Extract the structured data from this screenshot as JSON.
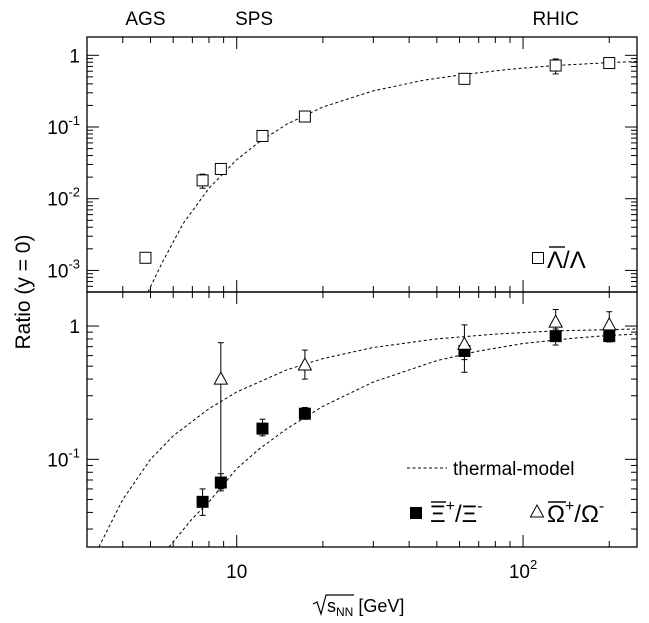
{
  "chart_data": {
    "type": "scatter",
    "xlabel_main": "s",
    "xlabel_sub": "NN",
    "xlabel_unit": " [GeV]",
    "ylabel": "Ratio (y = 0)",
    "x_scale": "log",
    "y_scale": "log",
    "xlim": [
      3,
      250
    ],
    "x_ticks": [
      {
        "v": 10,
        "base": "10",
        "exp": ""
      },
      {
        "v": 100,
        "base": "10",
        "exp": "2"
      }
    ],
    "top_labels": [
      {
        "text": "AGS",
        "x": 4.8
      },
      {
        "text": "SPS",
        "x": 11.5
      },
      {
        "text": "RHIC",
        "x": 130
      }
    ],
    "panels": [
      {
        "id": "top",
        "ylim": [
          0.0005,
          1.8
        ],
        "y_ticks": [
          {
            "v": 0.001,
            "base": "10",
            "exp": "-3"
          },
          {
            "v": 0.01,
            "base": "10",
            "exp": "-2"
          },
          {
            "v": 0.1,
            "base": "10",
            "exp": "-1"
          },
          {
            "v": 1,
            "base": "1",
            "exp": ""
          }
        ],
        "legend": {
          "position": "bottom-right",
          "entries": [
            {
              "marker": "open-square",
              "num": "Λ",
              "den": "Λ",
              "num_bar": true
            }
          ]
        },
        "series": [
          {
            "marker": "open-square",
            "points": [
              {
                "x": 4.8,
                "y": 0.0015,
                "lo": 0.0013,
                "hi": 0.0017
              },
              {
                "x": 7.6,
                "y": 0.018,
                "lo": 0.014,
                "hi": 0.022
              },
              {
                "x": 8.8,
                "y": 0.026,
                "lo": 0.022,
                "hi": 0.03
              },
              {
                "x": 12.3,
                "y": 0.075,
                "lo": 0.068,
                "hi": 0.082
              },
              {
                "x": 17.3,
                "y": 0.14,
                "lo": 0.12,
                "hi": 0.16
              },
              {
                "x": 62.4,
                "y": 0.47,
                "lo": 0.4,
                "hi": 0.54
              },
              {
                "x": 130,
                "y": 0.72,
                "lo": 0.55,
                "hi": 0.89
              },
              {
                "x": 200,
                "y": 0.78,
                "lo": 0.7,
                "hi": 0.86
              }
            ]
          }
        ],
        "curves": [
          {
            "style": "dashed",
            "points": [
              [
                4.9,
                0.0005
              ],
              [
                5.5,
                0.0013
              ],
              [
                6.5,
                0.0045
              ],
              [
                8,
                0.014
              ],
              [
                10,
                0.035
              ],
              [
                12,
                0.062
              ],
              [
                15,
                0.11
              ],
              [
                20,
                0.19
              ],
              [
                30,
                0.32
              ],
              [
                45,
                0.45
              ],
              [
                62,
                0.54
              ],
              [
                90,
                0.64
              ],
              [
                130,
                0.72
              ],
              [
                200,
                0.79
              ],
              [
                250,
                0.82
              ]
            ]
          }
        ]
      },
      {
        "id": "bottom",
        "ylim": [
          0.022,
          1.8
        ],
        "y_ticks": [
          {
            "v": 0.1,
            "base": "10",
            "exp": "-1"
          },
          {
            "v": 1,
            "base": "1",
            "exp": ""
          }
        ],
        "legend": {
          "position": "bottom-right",
          "curve_label": "thermal-model",
          "entries": [
            {
              "marker": "filled-square",
              "num": "Ξ",
              "num_sup": "+",
              "den": "Ξ",
              "den_sup": "-",
              "num_bar": true
            },
            {
              "marker": "open-triangle",
              "num": "Ω",
              "num_sup": "+",
              "den": "Ω",
              "den_sup": "-",
              "num_bar": true
            }
          ]
        },
        "series": [
          {
            "marker": "filled-square",
            "points": [
              {
                "x": 7.6,
                "y": 0.048,
                "lo": 0.038,
                "hi": 0.06
              },
              {
                "x": 8.8,
                "y": 0.067,
                "lo": 0.058,
                "hi": 0.078
              },
              {
                "x": 12.3,
                "y": 0.17,
                "lo": 0.15,
                "hi": 0.2
              },
              {
                "x": 17.3,
                "y": 0.22,
                "lo": 0.2,
                "hi": 0.245
              },
              {
                "x": 62.4,
                "y": 0.65,
                "lo": 0.56,
                "hi": 0.72
              },
              {
                "x": 130,
                "y": 0.84,
                "lo": 0.72,
                "hi": 0.95
              },
              {
                "x": 200,
                "y": 0.84,
                "lo": 0.76,
                "hi": 0.92
              }
            ]
          },
          {
            "marker": "open-triangle",
            "points": [
              {
                "x": 8.8,
                "y": 0.4,
                "lo": 0.06,
                "hi": 0.75
              },
              {
                "x": 17.3,
                "y": 0.51,
                "lo": 0.4,
                "hi": 0.66
              },
              {
                "x": 62.4,
                "y": 0.73,
                "lo": 0.45,
                "hi": 1.02
              },
              {
                "x": 130,
                "y": 1.07,
                "lo": 0.82,
                "hi": 1.33
              },
              {
                "x": 200,
                "y": 1.02,
                "lo": 0.9,
                "hi": 1.28
              }
            ]
          }
        ],
        "curves": [
          {
            "style": "dashed",
            "points": [
              [
                3.3,
                0.022
              ],
              [
                4,
                0.05
              ],
              [
                5,
                0.1
              ],
              [
                6,
                0.15
              ],
              [
                8,
                0.24
              ],
              [
                10,
                0.32
              ],
              [
                15,
                0.47
              ],
              [
                20,
                0.57
              ],
              [
                30,
                0.69
              ],
              [
                50,
                0.8
              ],
              [
                80,
                0.87
              ],
              [
                130,
                0.92
              ],
              [
                200,
                0.94
              ],
              [
                250,
                0.95
              ]
            ]
          },
          {
            "style": "dashed",
            "points": [
              [
                5.8,
                0.022
              ],
              [
                7,
                0.036
              ],
              [
                8,
                0.048
              ],
              [
                10,
                0.085
              ],
              [
                12,
                0.12
              ],
              [
                15,
                0.17
              ],
              [
                20,
                0.25
              ],
              [
                30,
                0.38
              ],
              [
                50,
                0.55
              ],
              [
                70,
                0.65
              ],
              [
                100,
                0.74
              ],
              [
                150,
                0.81
              ],
              [
                200,
                0.85
              ],
              [
                250,
                0.87
              ]
            ]
          }
        ]
      }
    ]
  }
}
